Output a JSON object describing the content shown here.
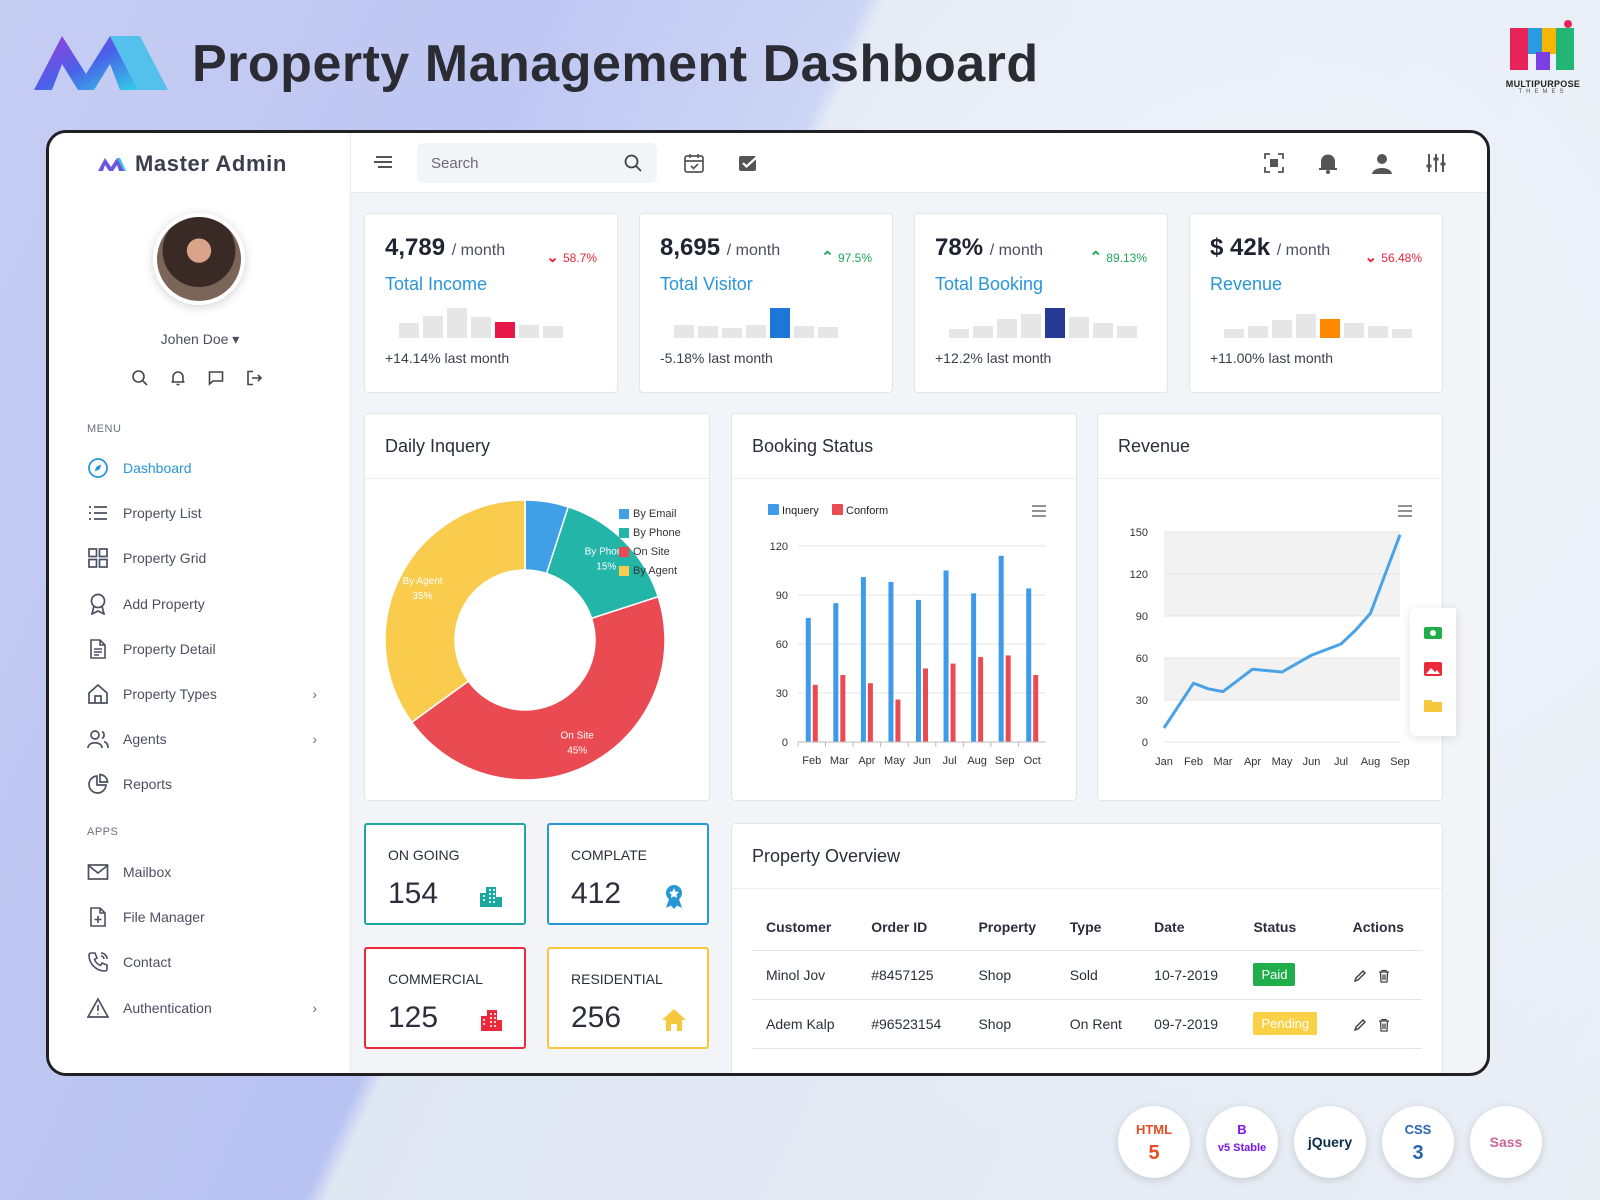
{
  "banner": {
    "title": "Property Management Dashboard",
    "brand_logo_caption": "MULTIPURPOSE",
    "brand_logo_sub": "THEMES"
  },
  "sidebar": {
    "brand": "Master Admin",
    "user": {
      "name": "Johen Doe",
      "caret": "▾"
    },
    "menu_heading": "MENU",
    "apps_heading": "APPS",
    "items": [
      {
        "label": "Dashboard",
        "icon": "compass-icon",
        "active": true
      },
      {
        "label": "Property List",
        "icon": "list-icon"
      },
      {
        "label": "Property Grid",
        "icon": "grid-icon"
      },
      {
        "label": "Add Property",
        "icon": "award-icon"
      },
      {
        "label": "Property Detail",
        "icon": "document-icon"
      },
      {
        "label": "Property Types",
        "icon": "home-icon",
        "chevron": "›"
      },
      {
        "label": "Agents",
        "icon": "users-icon",
        "chevron": "›"
      },
      {
        "label": "Reports",
        "icon": "pie-icon"
      }
    ],
    "apps": [
      {
        "label": "Mailbox",
        "icon": "mail-icon"
      },
      {
        "label": "File Manager",
        "icon": "file-plus-icon"
      },
      {
        "label": "Contact",
        "icon": "phone-icon"
      },
      {
        "label": "Authentication",
        "icon": "alert-triangle-icon",
        "chevron": "›"
      }
    ]
  },
  "topbar": {
    "search_placeholder": "Search"
  },
  "stats": [
    {
      "value": "4,789",
      "unit": "/ month",
      "delta": "58.7%",
      "direction": "down",
      "label": "Total Income",
      "foot": "+14.14% last month",
      "highlight_color": "#e8174a",
      "bars": [
        0.5,
        0.75,
        1.0,
        0.7,
        0.55,
        0.45,
        0.4
      ],
      "highlight": 4
    },
    {
      "value": "8,695",
      "unit": "/ month",
      "delta": "97.5%",
      "direction": "up",
      "label": "Total Visitor",
      "foot": "-5.18% last month",
      "highlight_color": "#1e76d6",
      "bars": [
        0.45,
        0.4,
        0.35,
        0.45,
        1.0,
        0.4,
        0.38
      ],
      "highlight": 4
    },
    {
      "value": "78%",
      "unit": "/ month",
      "delta": "89.13%",
      "direction": "up",
      "label": "Total Booking",
      "foot": "+12.2% last month",
      "highlight_color": "#283b94",
      "bars": [
        0.3,
        0.4,
        0.65,
        0.8,
        1.0,
        0.7,
        0.5,
        0.4
      ],
      "highlight": 4
    },
    {
      "value": "$ 42k",
      "unit": "/ month",
      "delta": "56.48%",
      "direction": "down",
      "label": "Revenue",
      "foot": "+11.00% last month",
      "highlight_color": "#ff8a00",
      "bars": [
        0.3,
        0.4,
        0.6,
        0.8,
        0.65,
        0.5,
        0.4,
        0.3
      ],
      "highlight": 4
    }
  ],
  "daily_inquery": {
    "title": "Daily Inquery"
  },
  "booking_status": {
    "title": "Booking Status"
  },
  "revenue_panel": {
    "title": "Revenue"
  },
  "chart_data": [
    {
      "type": "pie",
      "title": "Daily Inquery",
      "categories": [
        "By Email",
        "By Phone",
        "On Site",
        "By Agent"
      ],
      "values": [
        5,
        15,
        45,
        35
      ],
      "slice_labels": [
        "",
        "By Phone 15%",
        "On Site 45%",
        "By Agent 35%"
      ],
      "colors": [
        "#3fa0e8",
        "#22b5a8",
        "#ea4a52",
        "#f9cc4e"
      ],
      "donut": true,
      "legend": "top-right"
    },
    {
      "type": "bar",
      "title": "Booking Status",
      "categories": [
        "Feb",
        "Mar",
        "Apr",
        "May",
        "Jun",
        "Jul",
        "Aug",
        "Sep",
        "Oct"
      ],
      "series": [
        {
          "name": "Inquery",
          "values": [
            76,
            85,
            101,
            98,
            87,
            105,
            91,
            114,
            94
          ],
          "color": "#3d9be9"
        },
        {
          "name": "Conform",
          "values": [
            35,
            41,
            36,
            26,
            45,
            48,
            52,
            53,
            41
          ],
          "color": "#ea4a52"
        }
      ],
      "ylim": [
        0,
        120
      ],
      "yticks": [
        0,
        30,
        60,
        90,
        120
      ],
      "grid": true,
      "legend": "top-left"
    },
    {
      "type": "line",
      "title": "Revenue",
      "categories": [
        "Jan",
        "Feb",
        "Mar",
        "Apr",
        "May",
        "Jun",
        "Jul",
        "Aug",
        "Sep"
      ],
      "values": [
        10,
        30,
        35,
        41,
        44,
        50,
        58,
        70,
        145
      ],
      "line_points": [
        {
          "x": "Jan",
          "y": 10
        },
        {
          "x": "Jan-Feb",
          "y": 26
        },
        {
          "x": "Feb",
          "y": 42
        },
        {
          "x": "Feb-Mar",
          "y": 38
        },
        {
          "x": "Mar",
          "y": 36
        },
        {
          "x": "Mar-Apr",
          "y": 44
        },
        {
          "x": "Apr",
          "y": 52
        },
        {
          "x": "Apr-May",
          "y": 51
        },
        {
          "x": "May",
          "y": 50
        },
        {
          "x": "May-Jun",
          "y": 56
        },
        {
          "x": "Jun",
          "y": 62
        },
        {
          "x": "Jun-Jul",
          "y": 66
        },
        {
          "x": "Jul",
          "y": 70
        },
        {
          "x": "Jul-Aug",
          "y": 80
        },
        {
          "x": "Aug",
          "y": 92
        },
        {
          "x": "Aug-Sep",
          "y": 120
        },
        {
          "x": "Sep",
          "y": 148
        }
      ],
      "ylim": [
        0,
        150
      ],
      "yticks": [
        0,
        30,
        60,
        90,
        120,
        150
      ],
      "color": "#4aa3e6",
      "grid": true
    }
  ],
  "kpis": [
    {
      "title": "ON GOING",
      "value": "154",
      "color": "#1fa6a0",
      "icon": "building-icon"
    },
    {
      "title": "COMPLATE",
      "value": "412",
      "color": "#2996d8",
      "icon": "award-icon"
    },
    {
      "title": "COMMERCIAL",
      "value": "125",
      "color": "#ea2a3a",
      "icon": "office-icon"
    },
    {
      "title": "RESIDENTIAL",
      "value": "256",
      "color": "#f6c83d",
      "icon": "home-icon"
    }
  ],
  "overview": {
    "title": "Property Overview",
    "columns": [
      "Customer",
      "Order ID",
      "Property",
      "Type",
      "Date",
      "Status",
      "Actions"
    ],
    "rows": [
      {
        "customer": "Minol Jov",
        "order_id": "#8457125",
        "property": "Shop",
        "type": "Sold",
        "date": "10-7-2019",
        "status": "Paid",
        "status_color": "#1fae49"
      },
      {
        "customer": "Adem Kalp",
        "order_id": "#96523154",
        "property": "Shop",
        "type": "On Rent",
        "date": "09-7-2019",
        "status": "Pending",
        "status_color": "#f8d147"
      }
    ]
  },
  "tech_badges": [
    {
      "label": "HTML",
      "sub": "5",
      "color": "#e44d26"
    },
    {
      "label": "B",
      "sub": "v5 Stable",
      "color": "#7b15ed"
    },
    {
      "label": "jQuery",
      "sub": "",
      "color": "#0b2d4a"
    },
    {
      "label": "CSS",
      "sub": "3",
      "color": "#2a64ad"
    },
    {
      "label": "Sass",
      "sub": "",
      "color": "#cc6699"
    }
  ]
}
